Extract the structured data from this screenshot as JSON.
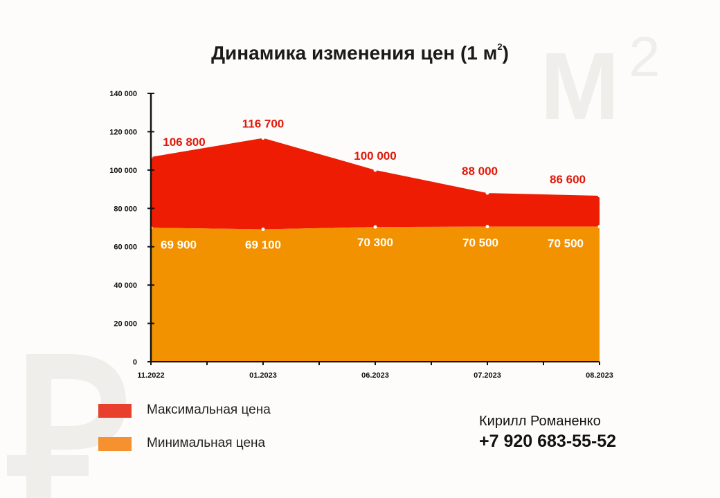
{
  "title_main": "Динамика изменения цен (1 м",
  "title_sup": "2",
  "title_end": ")",
  "watermark_m": "M",
  "watermark_sq": "2",
  "colors": {
    "max": "#ee1c02",
    "min": "#f29200",
    "label_max": "#e0190a",
    "label_min": "#ffffff",
    "legend_max": "#e9402e",
    "legend_min": "#f5922f",
    "watermark": "#f0eeea",
    "axis": "#111111"
  },
  "chart_data": {
    "type": "area",
    "title": "Динамика изменения цен (1 м2)",
    "categories": [
      "11.2022",
      "01.2023",
      "06.2023",
      "07.2023",
      "08.2023"
    ],
    "y_ticks": [
      "0",
      "20 000",
      "40 000",
      "60 000",
      "80 000",
      "100 000",
      "120 000",
      "140 000"
    ],
    "ylim": [
      0,
      140000
    ],
    "series": [
      {
        "name": "Максимальная цена",
        "values": [
          106800,
          116700,
          100000,
          88000,
          86600
        ],
        "labels": [
          "106 800",
          "116 700",
          "100 000",
          "88 000",
          "86 600"
        ]
      },
      {
        "name": "Минимальная цена",
        "values": [
          69900,
          69100,
          70300,
          70500,
          70500
        ],
        "labels": [
          "69 900",
          "69 100",
          "70 300",
          "70 500",
          "70 500"
        ]
      }
    ],
    "legend_position": "bottom-left",
    "grid": false
  },
  "legend": {
    "max_label": "Максимальная цена",
    "min_label": "Минимальная цена"
  },
  "contact": {
    "name": "Кирилл Романенко",
    "phone": "+7 920 683-55-52"
  }
}
